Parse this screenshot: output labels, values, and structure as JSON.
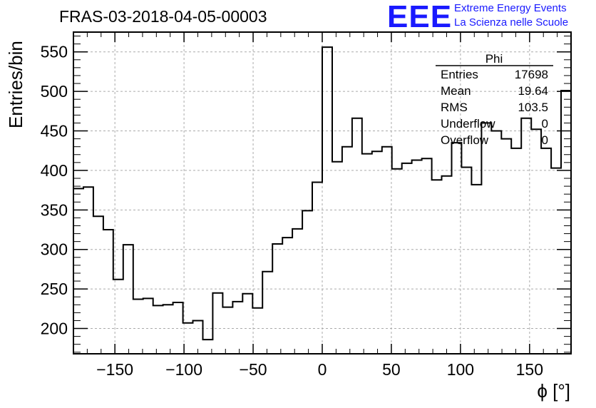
{
  "header": {
    "title": "FRAS-03-2018-04-05-00003",
    "logo_text": "EEE",
    "logo_line1": "Extreme Energy Events",
    "logo_line2": "La Scienza nelle Scuole"
  },
  "stats": {
    "title": "Phi",
    "rows": [
      {
        "label": "Entries",
        "value": "17698"
      },
      {
        "label": "Mean",
        "value": "19.64"
      },
      {
        "label": "RMS",
        "value": "103.5"
      },
      {
        "label": "Underflow",
        "value": "0"
      },
      {
        "label": "Overflow",
        "value": "0"
      }
    ]
  },
  "colors": {
    "logo": "#1a1aff",
    "line": "#000000",
    "grid": "#aaaaaa"
  },
  "chart_data": {
    "type": "histogram",
    "xlabel": "ϕ [°]",
    "ylabel": "Entries/bin",
    "xlim": [
      -180,
      180
    ],
    "ylim": [
      168,
      575
    ],
    "grid": true,
    "x_ticks": [
      -150,
      -100,
      -50,
      0,
      50,
      100,
      150
    ],
    "y_ticks": [
      200,
      250,
      300,
      350,
      400,
      450,
      500,
      550
    ],
    "bin_edges_start": -180,
    "bin_width": 7.2,
    "values": [
      377,
      379,
      342,
      325,
      262,
      306,
      237,
      238,
      229,
      230,
      233,
      207,
      210,
      186,
      245,
      227,
      234,
      244,
      226,
      272,
      307,
      315,
      326,
      349,
      385,
      556,
      411,
      430,
      466,
      421,
      424,
      430,
      402,
      409,
      413,
      415,
      388,
      393,
      435,
      404,
      382,
      460,
      450,
      440,
      428,
      466,
      452,
      428,
      403,
      501
    ]
  }
}
